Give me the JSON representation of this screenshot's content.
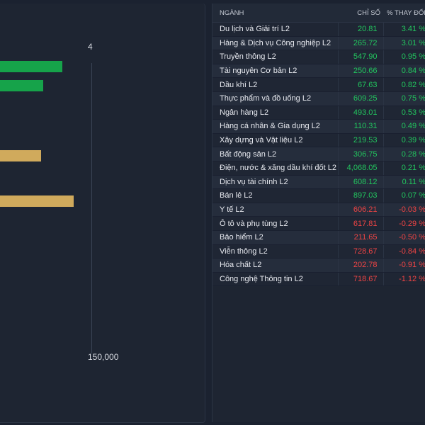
{
  "chart": {
    "axis_top_label": "4",
    "axis_bottom_label": "150,000",
    "colors": {
      "green": "#16a34a",
      "gold": "#d0aa5c"
    },
    "bars": [
      {
        "name": "bar-green-1",
        "color": "green",
        "length_fraction": 0.305
      },
      {
        "name": "bar-green-2",
        "color": "green",
        "length_fraction": 0.21
      },
      {
        "name": "bar-gold-1",
        "color": "gold",
        "length_fraction": 0.2
      },
      {
        "name": "bar-gold-2",
        "color": "gold",
        "length_fraction": 0.36
      }
    ]
  },
  "table": {
    "headers": {
      "sector": "NGÀNH",
      "index": "CHỈ SỐ",
      "change": "% THAY ĐỔI"
    },
    "rows": [
      {
        "sector": "Du lịch và Giải trí L2",
        "index": "20.81",
        "change": "3.41 %",
        "dir": "pos"
      },
      {
        "sector": "Hàng & Dịch vụ Công nghiệp L2",
        "index": "265.72",
        "change": "3.01 %",
        "dir": "pos"
      },
      {
        "sector": "Truyền thông L2",
        "index": "547.90",
        "change": "0.95 %",
        "dir": "pos"
      },
      {
        "sector": "Tài nguyên Cơ bản L2",
        "index": "250.66",
        "change": "0.84 %",
        "dir": "pos"
      },
      {
        "sector": "Dầu khí L2",
        "index": "67.63",
        "change": "0.82 %",
        "dir": "pos"
      },
      {
        "sector": "Thực phẩm và đồ uống L2",
        "index": "609.25",
        "change": "0.75 %",
        "dir": "pos"
      },
      {
        "sector": "Ngân hàng L2",
        "index": "493.01",
        "change": "0.53 %",
        "dir": "pos"
      },
      {
        "sector": "Hàng cá nhân & Gia dụng L2",
        "index": "110.31",
        "change": "0.49 %",
        "dir": "pos"
      },
      {
        "sector": "Xây dựng và Vật liệu L2",
        "index": "219.53",
        "change": "0.39 %",
        "dir": "pos"
      },
      {
        "sector": "Bất động sản L2",
        "index": "306.75",
        "change": "0.28 %",
        "dir": "pos"
      },
      {
        "sector": "Điện, nước & xăng dầu khí đốt L2",
        "index": "4,068.05",
        "change": "0.21 %",
        "dir": "pos"
      },
      {
        "sector": "Dịch vụ tài chính L2",
        "index": "608.12",
        "change": "0.11 %",
        "dir": "pos"
      },
      {
        "sector": "Bán lẻ L2",
        "index": "897.03",
        "change": "0.07 %",
        "dir": "pos"
      },
      {
        "sector": "Y tế L2",
        "index": "606.21",
        "change": "-0.03 %",
        "dir": "neg"
      },
      {
        "sector": "Ô tô và phụ tùng L2",
        "index": "617.81",
        "change": "-0.29 %",
        "dir": "neg"
      },
      {
        "sector": "Bảo hiểm L2",
        "index": "211.65",
        "change": "-0.50 %",
        "dir": "neg"
      },
      {
        "sector": "Viễn thông L2",
        "index": "728.67",
        "change": "-0.84 %",
        "dir": "neg"
      },
      {
        "sector": "Hóa chất L2",
        "index": "202.78",
        "change": "-0.91 %",
        "dir": "neg"
      },
      {
        "sector": "Công nghệ Thông tin L2",
        "index": "718.67",
        "change": "-1.12 %",
        "dir": "neg"
      }
    ]
  }
}
